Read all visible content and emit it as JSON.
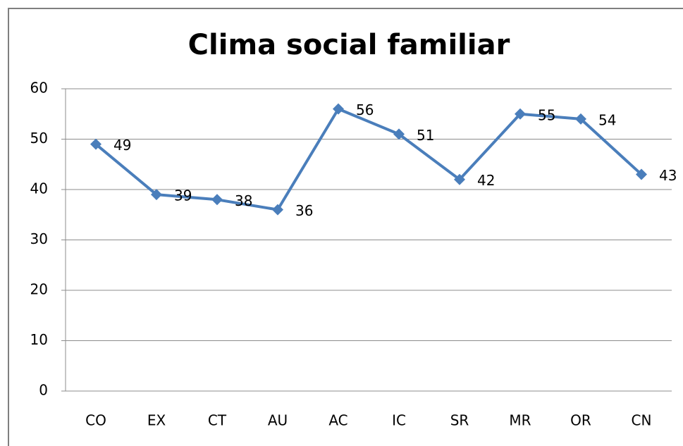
{
  "chart_data": {
    "type": "line",
    "title": "Clima social familiar",
    "categories": [
      "CO",
      "EX",
      "CT",
      "AU",
      "AC",
      "IC",
      "SR",
      "MR",
      "OR",
      "CN"
    ],
    "series": [
      {
        "color": "#4a7ebb",
        "values": [
          49,
          39,
          38,
          36,
          56,
          51,
          42,
          55,
          54,
          43
        ]
      }
    ],
    "ylim": [
      0,
      60
    ],
    "yticks": [
      0,
      10,
      20,
      30,
      40,
      50,
      60
    ],
    "grid": true
  }
}
